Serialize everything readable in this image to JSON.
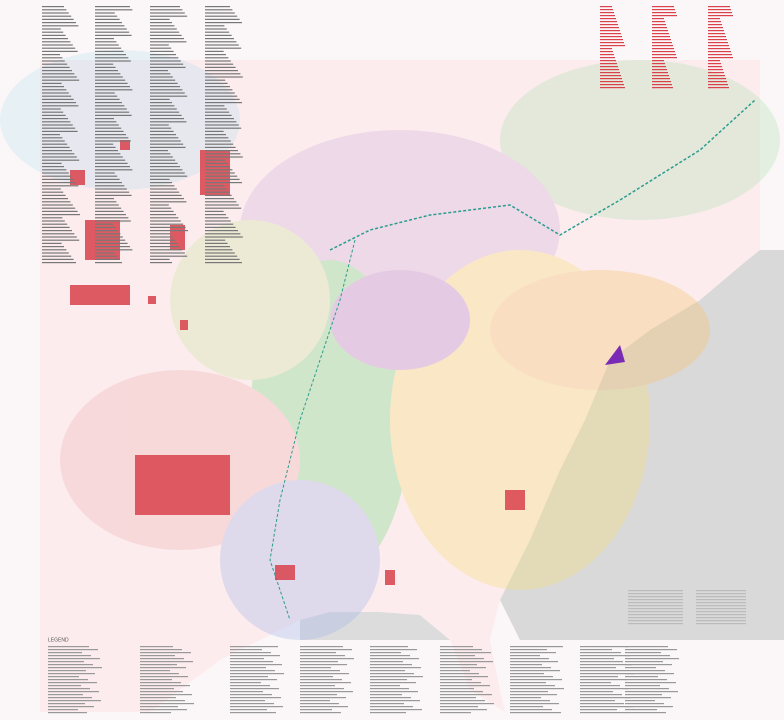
{
  "legend": {
    "title": "LEGEND"
  }
}
